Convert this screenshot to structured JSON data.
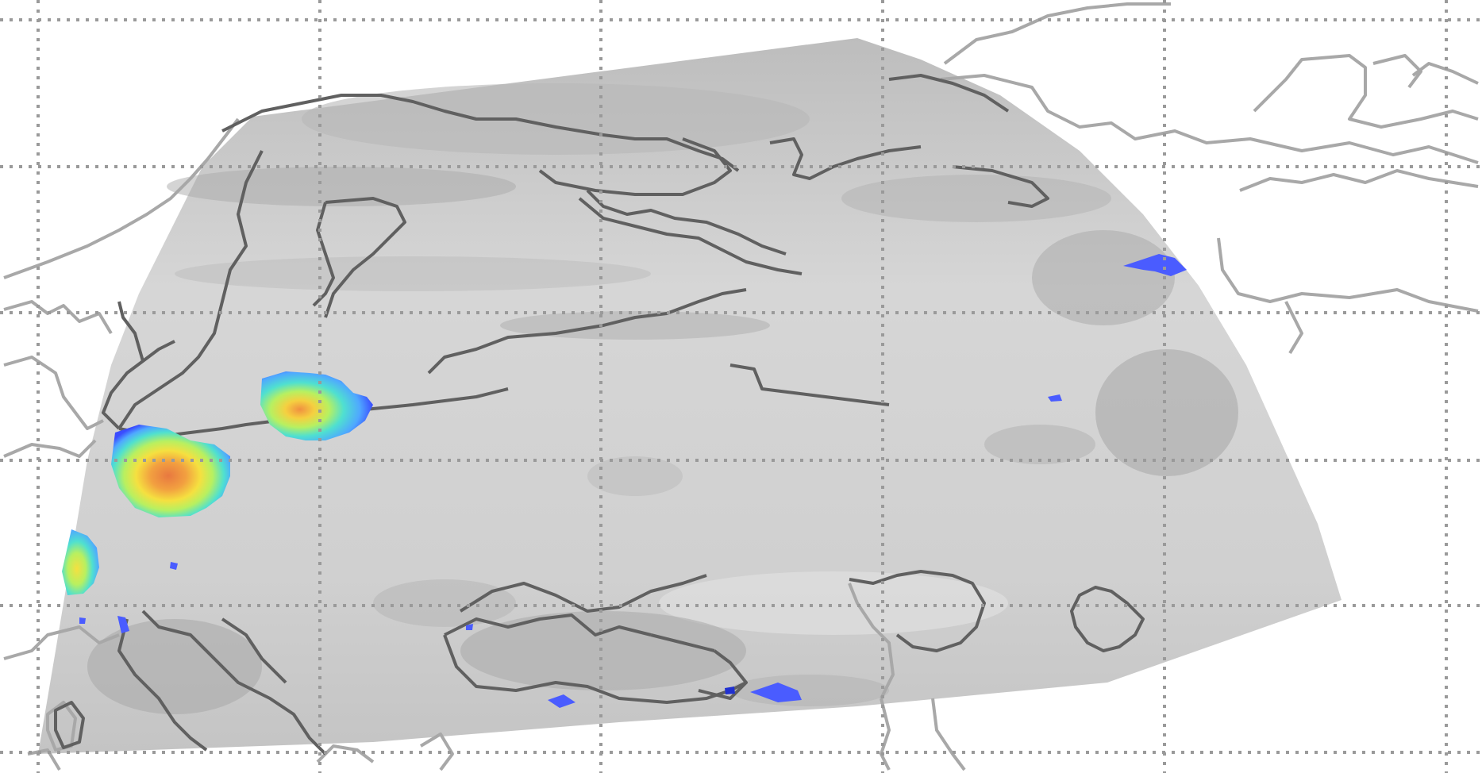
{
  "map": {
    "projection": "polar-stereographic",
    "layers": [
      "satellite-infrared-greyscale",
      "precipitation-intensity",
      "coastlines-and-borders",
      "graticule"
    ],
    "graticule": {
      "style": "dotted",
      "color": "#9a9a9a"
    },
    "coastline_color": "#a8a8a8",
    "border_color_on_swath": "#5a5a5a",
    "swath_color": "#cdcdcd",
    "precipitation_colormap": [
      "#3a4cff",
      "#4fa8ff",
      "#4fe0d0",
      "#b8f060",
      "#f5e040",
      "#f2a040",
      "#e87840"
    ]
  }
}
